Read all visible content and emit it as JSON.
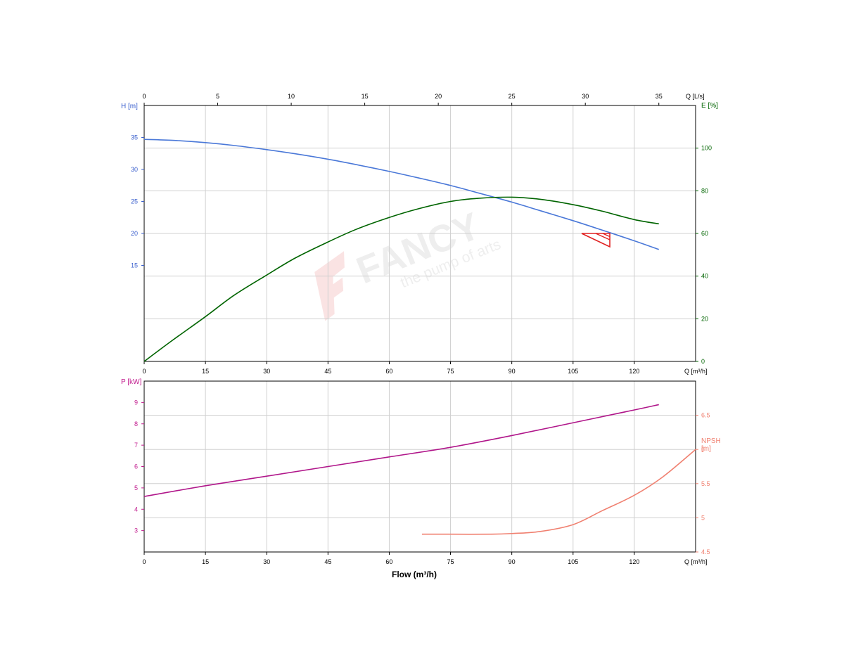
{
  "watermark": {
    "brand": "FANCY",
    "slogan": "the pump of arts"
  },
  "chart_data": [
    {
      "id": "top-panel",
      "type": "line",
      "x_axis_bottom": {
        "label": "Q [m³/h]",
        "ticks": [
          0,
          15,
          30,
          45,
          60,
          75,
          90,
          105,
          120
        ],
        "range": [
          0,
          135
        ]
      },
      "x_axis_top": {
        "label": "Q [L/s]",
        "ticks": [
          0,
          5,
          10,
          15,
          20,
          25,
          30,
          35
        ],
        "range": [
          0,
          37.5
        ]
      },
      "y_axis_left": {
        "label": "H [m]",
        "ticks": [
          15,
          20,
          25,
          30,
          35
        ],
        "range": [
          0,
          40
        ],
        "color": "#3a5fcd"
      },
      "y_axis_right": {
        "label": "E [%]",
        "ticks": [
          0,
          20,
          40,
          60,
          80,
          100
        ],
        "range": [
          0,
          120
        ],
        "color": "#006400"
      },
      "grid": true,
      "series": [
        {
          "color": "#4a78d8",
          "axis": "left",
          "x": [
            0,
            7,
            15,
            22,
            30,
            37,
            45,
            52,
            60,
            67,
            75,
            82,
            90,
            97,
            105,
            112,
            120,
            126
          ],
          "y": [
            34.7,
            34.55,
            34.2,
            33.75,
            33.1,
            32.45,
            31.6,
            30.75,
            29.7,
            28.7,
            27.5,
            26.3,
            24.9,
            23.55,
            22.0,
            20.55,
            18.85,
            17.5
          ]
        },
        {
          "color": "#006400",
          "axis": "right",
          "x": [
            0,
            7,
            15,
            22,
            30,
            37,
            45,
            52,
            60,
            67,
            75,
            82,
            90,
            97,
            105,
            112,
            120,
            126
          ],
          "y": [
            0,
            10,
            21,
            31,
            40.5,
            48.5,
            56,
            62,
            67.5,
            71.5,
            75,
            76.5,
            77,
            76,
            73.5,
            70.5,
            66.5,
            64.5
          ]
        }
      ],
      "duty_point": {
        "x": 114,
        "y": 20,
        "color": "#e02020"
      }
    },
    {
      "id": "bottom-panel",
      "type": "line",
      "x_axis_bottom": {
        "label": "Q [m³/h]",
        "ticks": [
          0,
          15,
          30,
          45,
          60,
          75,
          90,
          105,
          120
        ],
        "range": [
          0,
          135
        ]
      },
      "y_axis_left": {
        "label": "P [kW]",
        "ticks": [
          3,
          4,
          5,
          6,
          7,
          8,
          9
        ],
        "range": [
          2,
          10
        ],
        "color": "#c0188c"
      },
      "y_axis_right": {
        "label_line1": "NPSH",
        "label_line2": "[m]",
        "ticks": [
          4.5,
          5,
          5.5,
          6,
          6.5
        ],
        "range": [
          4.5,
          7.0
        ],
        "color": "#f08070"
      },
      "xlabel": "Flow (m³/h)",
      "grid": true,
      "series": [
        {
          "color": "#b0168a",
          "axis": "left",
          "x": [
            0,
            15,
            30,
            45,
            60,
            75,
            90,
            105,
            120,
            126
          ],
          "y": [
            4.6,
            5.1,
            5.55,
            6.0,
            6.45,
            6.9,
            7.45,
            8.05,
            8.65,
            8.9
          ]
        },
        {
          "color": "#f08070",
          "axis": "right",
          "x": [
            68,
            75,
            85,
            90,
            97,
            105,
            112,
            120,
            127,
            135
          ],
          "y": [
            4.76,
            4.76,
            4.76,
            4.77,
            4.8,
            4.9,
            5.1,
            5.33,
            5.6,
            6.0
          ]
        }
      ]
    }
  ]
}
